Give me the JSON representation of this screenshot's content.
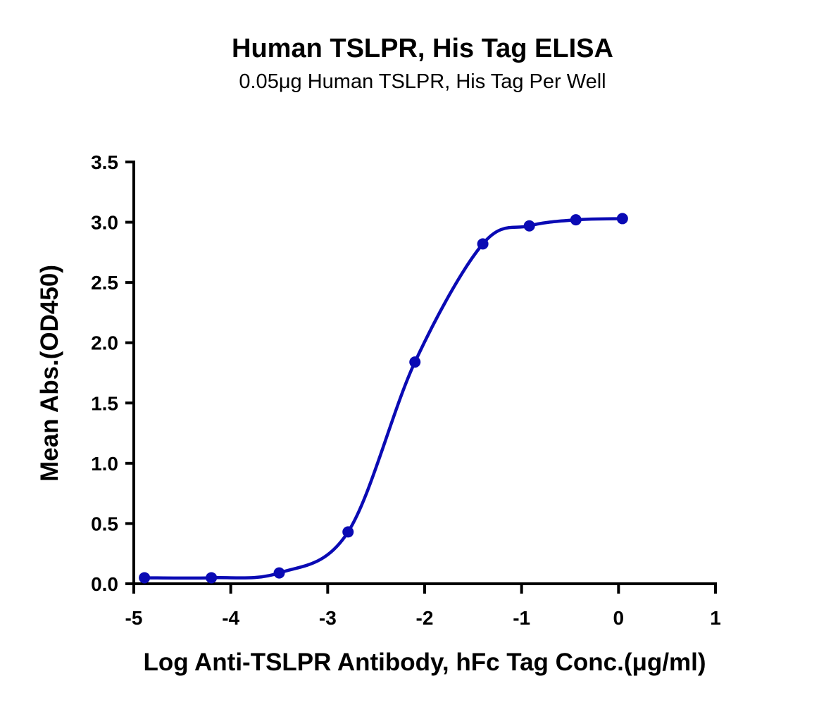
{
  "chart_data": {
    "type": "line",
    "title": "Human TSLPR, His Tag ELISA",
    "subtitle": "0.05μg Human TSLPR, His Tag Per Well",
    "xlabel": "Log Anti-TSLPR Antibody, hFc Tag Conc.(μg/ml)",
    "ylabel": "Mean Abs.(OD450)",
    "xlim": [
      -5,
      1
    ],
    "ylim": [
      0,
      3.5
    ],
    "xticks": [
      "-5",
      "-4",
      "-3",
      "-2",
      "-1",
      "0",
      "1"
    ],
    "yticks": [
      "0.0",
      "0.5",
      "1.0",
      "1.5",
      "2.0",
      "2.5",
      "3.0",
      "3.5"
    ],
    "grid": false,
    "color": "#0a0ab4",
    "series": [
      {
        "x": [
          -4.89,
          -4.2,
          -3.5,
          -2.79,
          -2.1,
          -1.4,
          -0.92,
          -0.44,
          0.04
        ],
        "y": [
          0.05,
          0.05,
          0.09,
          0.43,
          1.84,
          2.82,
          2.97,
          3.02,
          3.03
        ]
      }
    ]
  }
}
